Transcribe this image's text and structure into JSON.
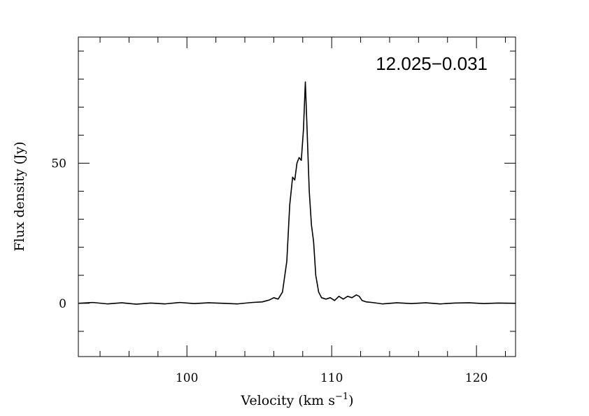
{
  "chart_data": {
    "type": "line",
    "title": "",
    "annotation": "12.025−0.031",
    "xlabel": {
      "main": "Velocity (km s",
      "sup": "−1",
      "close": ")"
    },
    "ylabel": "Flux density (Jy)",
    "xlim": [
      92.5,
      122.7
    ],
    "ylim": [
      -19,
      95
    ],
    "x_major_ticks": [
      100,
      110,
      120
    ],
    "x_minor_step": 2,
    "y_major_ticks": [
      0,
      50
    ],
    "y_minor_step": 10,
    "grid": false,
    "line_color": "#000000",
    "series": [
      {
        "x": [
          92.5,
          93.5,
          94.5,
          95.5,
          96.5,
          97.5,
          98.5,
          99.5,
          100.5,
          101.5,
          102.5,
          103.5,
          104.5,
          105.2,
          105.7,
          106.0,
          106.3,
          106.6,
          106.9,
          107.1,
          107.3,
          107.45,
          107.6,
          107.75,
          107.9,
          108.05,
          108.18,
          108.3,
          108.45,
          108.6,
          108.75,
          108.9,
          109.1,
          109.3,
          109.6,
          109.9,
          110.2,
          110.5,
          110.8,
          111.1,
          111.4,
          111.7,
          111.9,
          112.1,
          112.4,
          112.8,
          113.5,
          114.5,
          115.5,
          116.5,
          117.5,
          118.5,
          119.5,
          120.5,
          121.5,
          122.7
        ],
        "y": [
          0,
          0.3,
          -0.2,
          0.2,
          -0.3,
          0.1,
          -0.2,
          0.3,
          -0.1,
          0.2,
          0,
          -0.2,
          0.3,
          0.5,
          1.2,
          2.0,
          1.5,
          4.0,
          15.0,
          35.0,
          45.0,
          44.0,
          50.0,
          52.0,
          51.0,
          62.0,
          79.0,
          62.0,
          40.0,
          28.0,
          22.0,
          10.0,
          4.0,
          2.0,
          1.5,
          2.0,
          1.0,
          2.5,
          1.5,
          2.5,
          2.0,
          3.0,
          2.5,
          1.0,
          0.5,
          0.3,
          -0.2,
          0.2,
          -0.1,
          0.2,
          -0.2,
          0.1,
          0.2,
          -0.1,
          0.1,
          0
        ]
      }
    ]
  }
}
